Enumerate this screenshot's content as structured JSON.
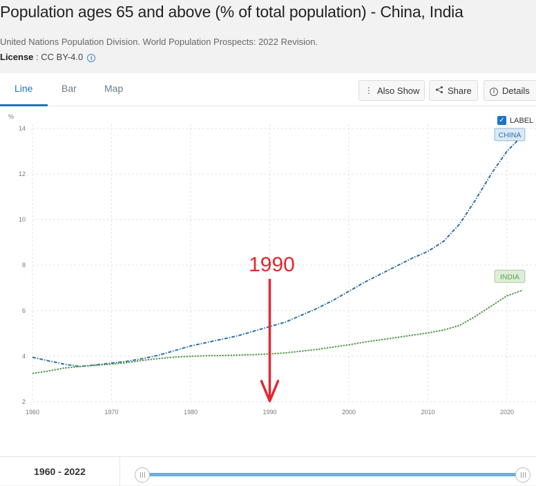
{
  "header": {
    "title": "Population ages 65 and above (% of total population) - China, India",
    "source": "United Nations Population Division. World Population Prospects: 2022 Revision.",
    "license_label": "License",
    "license_value": " : CC BY-4.0"
  },
  "tabs": [
    {
      "label": "Line",
      "active": true
    },
    {
      "label": "Bar",
      "active": false
    },
    {
      "label": "Map",
      "active": false
    }
  ],
  "toolbar": {
    "also_show": "Also Show",
    "share": "Share",
    "details": "Details"
  },
  "label_toggle": {
    "label": "LABEL",
    "checked": true
  },
  "range": {
    "text": "1960 - 2022",
    "start": 1960,
    "end": 2022
  },
  "annotation": {
    "text": "1990",
    "x": 1990,
    "color": "#e3262e"
  },
  "chart_data": {
    "type": "line",
    "ylabel": "%",
    "xlim": [
      1960,
      2022
    ],
    "ylim": [
      2,
      14
    ],
    "xticks": [
      1960,
      1970,
      1980,
      1990,
      2000,
      2010,
      2020
    ],
    "yticks": [
      2,
      4,
      6,
      8,
      10,
      12,
      14
    ],
    "grid": true,
    "series": [
      {
        "name": "CHINA",
        "color": "#2b6ea8",
        "label_bg": "#dbe9f6",
        "x": [
          1960,
          1962,
          1964,
          1966,
          1968,
          1970,
          1972,
          1974,
          1976,
          1978,
          1980,
          1982,
          1984,
          1986,
          1988,
          1990,
          1992,
          1994,
          1996,
          1998,
          2000,
          2002,
          2004,
          2006,
          2008,
          2010,
          2012,
          2014,
          2016,
          2018,
          2020,
          2022
        ],
        "y": [
          3.95,
          3.8,
          3.65,
          3.55,
          3.62,
          3.7,
          3.78,
          3.9,
          4.05,
          4.25,
          4.45,
          4.6,
          4.75,
          4.9,
          5.1,
          5.3,
          5.5,
          5.8,
          6.1,
          6.45,
          6.85,
          7.25,
          7.6,
          7.95,
          8.3,
          8.6,
          9.05,
          9.8,
          10.85,
          12.0,
          13.0,
          13.7
        ]
      },
      {
        "name": "INDIA",
        "color": "#5a9a4e",
        "label_bg": "#dcefd6",
        "x": [
          1960,
          1962,
          1964,
          1966,
          1968,
          1970,
          1972,
          1974,
          1976,
          1978,
          1980,
          1982,
          1984,
          1986,
          1988,
          1990,
          1992,
          1994,
          1996,
          1998,
          2000,
          2002,
          2004,
          2006,
          2008,
          2010,
          2012,
          2014,
          2016,
          2018,
          2020,
          2022
        ],
        "y": [
          3.25,
          3.35,
          3.48,
          3.55,
          3.6,
          3.65,
          3.72,
          3.82,
          3.9,
          3.96,
          4.0,
          4.02,
          4.03,
          4.05,
          4.07,
          4.1,
          4.15,
          4.22,
          4.3,
          4.4,
          4.5,
          4.62,
          4.72,
          4.82,
          4.92,
          5.02,
          5.15,
          5.35,
          5.75,
          6.2,
          6.65,
          6.9
        ]
      }
    ]
  }
}
